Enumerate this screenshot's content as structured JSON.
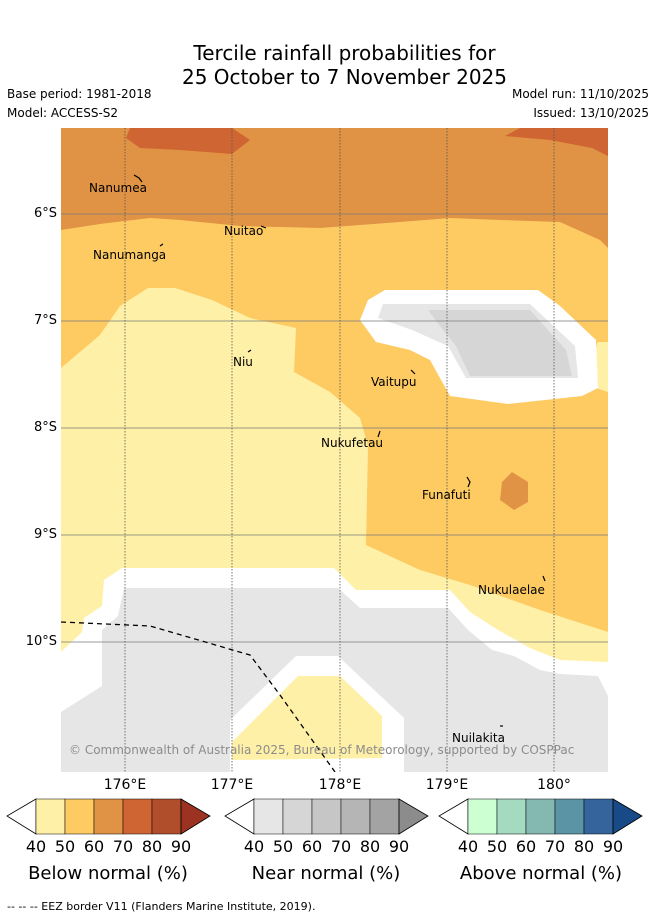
{
  "title": {
    "line1": "Tercile rainfall probabilities for",
    "line2": "25 October to 7 November 2025"
  },
  "meta": {
    "base_period": "Base period: 1981-2018",
    "model": "Model: ACCESS-S2",
    "model_run": "Model run: 11/10/2025",
    "issued": "Issued: 13/10/2025"
  },
  "map": {
    "lat_labels": [
      "6°S",
      "7°S",
      "8°S",
      "9°S",
      "10°S"
    ],
    "lon_labels": [
      "176°E",
      "177°E",
      "178°E",
      "179°E",
      "180°"
    ],
    "islands": [
      "Nanumea",
      "Nuitao",
      "Nanumanga",
      "Niu",
      "Vaitupu",
      "Nukufetau",
      "Funafuti",
      "Nukulaelae",
      "Nuilakita"
    ],
    "copyright": "© Commonwealth of Australia 2025, Bureau of Meteorology, supported by COSPPac"
  },
  "colorbars": [
    {
      "title": "Below normal (%)",
      "ticks": [
        "40",
        "50",
        "60",
        "70",
        "80",
        "90"
      ],
      "colors": [
        "#fff0a8",
        "#fecb63",
        "#e09344",
        "#cf6532",
        "#b04d2a",
        "#9b3222"
      ]
    },
    {
      "title": "Near normal (%)",
      "ticks": [
        "40",
        "50",
        "60",
        "70",
        "80",
        "90"
      ],
      "colors": [
        "#e6e6e6",
        "#d6d6d6",
        "#c6c6c6",
        "#b5b5b5",
        "#a3a3a3",
        "#8c8c8c"
      ]
    },
    {
      "title": "Above normal (%)",
      "ticks": [
        "40",
        "50",
        "60",
        "70",
        "80",
        "90"
      ],
      "colors": [
        "#ccffd2",
        "#a4dac0",
        "#84b9b1",
        "#5b94a5",
        "#35649c",
        "#174a86"
      ]
    }
  ],
  "footer": "--  --  -- EEZ border V11 (Flanders Marine Institute, 2019)."
}
